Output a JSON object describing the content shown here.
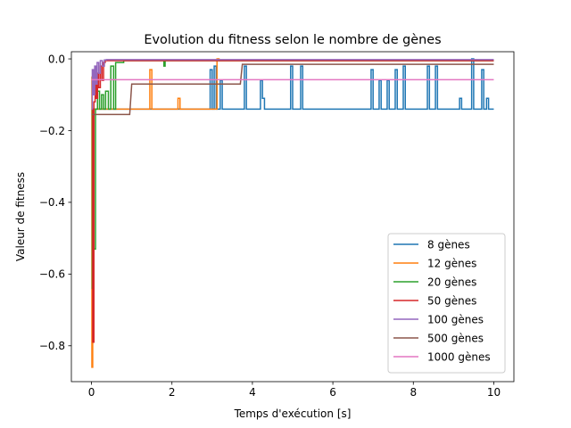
{
  "chart_data": {
    "type": "line",
    "title": "Evolution du fitness selon le nombre de gènes",
    "xlabel": "Temps d'exécution [s]",
    "ylabel": "Valeur de fitness",
    "xlim": [
      -0.5,
      10.5
    ],
    "ylim": [
      -0.9,
      0.02
    ],
    "xticks": [
      0,
      2,
      4,
      6,
      8,
      10
    ],
    "xtick_labels": [
      "0",
      "2",
      "4",
      "6",
      "8",
      "10"
    ],
    "yticks": [
      0.0,
      -0.2,
      -0.4,
      -0.6,
      -0.8
    ],
    "ytick_labels": [
      "0.0",
      "−0.2",
      "−0.4",
      "−0.6",
      "−0.8"
    ],
    "grid": false,
    "legend_position": "bottom-right",
    "series": [
      {
        "name": "8 gènes",
        "color": "#1f77b4",
        "x": [
          0,
          0.05,
          0.1,
          0.3,
          2.95,
          2.95,
          3.0,
          3.0,
          3.05,
          3.05,
          3.1,
          3.1,
          3.2,
          3.2,
          3.25,
          3.25,
          3.3,
          3.3,
          3.8,
          3.8,
          3.85,
          3.85,
          4.2,
          4.2,
          4.25,
          4.25,
          4.3,
          4.3,
          4.95,
          4.95,
          5.0,
          5.0,
          5.2,
          5.2,
          5.25,
          5.25,
          6.95,
          6.95,
          7.0,
          7.0,
          7.15,
          7.15,
          7.2,
          7.2,
          7.35,
          7.35,
          7.4,
          7.4,
          7.55,
          7.55,
          7.6,
          7.6,
          7.75,
          7.75,
          7.8,
          7.8,
          8.35,
          8.35,
          8.4,
          8.4,
          8.55,
          8.55,
          8.6,
          8.6,
          9.15,
          9.15,
          9.2,
          9.2,
          9.45,
          9.45,
          9.5,
          9.5,
          9.55,
          9.55,
          9.7,
          9.7,
          9.75,
          9.75,
          9.82,
          9.82,
          9.87,
          9.87,
          10.0
        ],
        "y": [
          -0.14,
          -0.14,
          -0.14,
          -0.14,
          -0.14,
          -0.03,
          -0.03,
          -0.14,
          -0.14,
          -0.02,
          -0.02,
          -0.14,
          -0.14,
          -0.06,
          -0.06,
          -0.14,
          -0.14,
          -0.14,
          -0.14,
          -0.02,
          -0.02,
          -0.14,
          -0.14,
          -0.06,
          -0.06,
          -0.11,
          -0.11,
          -0.14,
          -0.14,
          -0.02,
          -0.02,
          -0.14,
          -0.14,
          -0.02,
          -0.02,
          -0.14,
          -0.14,
          -0.03,
          -0.03,
          -0.14,
          -0.14,
          -0.06,
          -0.06,
          -0.14,
          -0.14,
          -0.06,
          -0.06,
          -0.14,
          -0.14,
          -0.03,
          -0.03,
          -0.14,
          -0.14,
          -0.02,
          -0.02,
          -0.14,
          -0.14,
          -0.02,
          -0.02,
          -0.14,
          -0.14,
          -0.02,
          -0.02,
          -0.14,
          -0.14,
          -0.11,
          -0.11,
          -0.14,
          -0.14,
          0.0,
          0.0,
          -0.14,
          -0.14,
          -0.14,
          -0.14,
          -0.03,
          -0.03,
          -0.14,
          -0.14,
          -0.11,
          -0.11,
          -0.14,
          -0.14
        ]
      },
      {
        "name": "12 gènes",
        "color": "#ff7f0e",
        "x": [
          0,
          0.01,
          0.01,
          0.03,
          0.03,
          0.06,
          0.06,
          0.1,
          0.1,
          1.45,
          1.45,
          1.5,
          1.5,
          2.15,
          2.15,
          2.2,
          2.2,
          3.12,
          3.12,
          3.17,
          3.17,
          10.0
        ],
        "y": [
          -0.05,
          -0.05,
          -0.86,
          -0.86,
          -0.14,
          -0.14,
          -0.14,
          -0.14,
          -0.14,
          -0.14,
          -0.03,
          -0.03,
          -0.14,
          -0.14,
          -0.11,
          -0.11,
          -0.14,
          -0.14,
          0.0,
          0.0,
          -0.005,
          -0.005
        ]
      },
      {
        "name": "20 gènes",
        "color": "#2ca02c",
        "x": [
          0,
          0.02,
          0.02,
          0.05,
          0.05,
          0.1,
          0.1,
          0.15,
          0.15,
          0.2,
          0.2,
          0.25,
          0.25,
          0.3,
          0.3,
          0.35,
          0.35,
          0.42,
          0.42,
          0.48,
          0.48,
          0.55,
          0.55,
          0.6,
          0.6,
          0.65,
          0.65,
          0.7,
          0.7,
          0.75,
          0.75,
          0.8,
          0.8,
          1.8,
          1.8,
          1.83,
          1.83,
          10.0
        ],
        "y": [
          -0.14,
          -0.14,
          -0.64,
          -0.64,
          -0.53,
          -0.53,
          -0.14,
          -0.14,
          -0.09,
          -0.09,
          -0.14,
          -0.14,
          -0.1,
          -0.1,
          -0.14,
          -0.14,
          -0.09,
          -0.09,
          -0.14,
          -0.14,
          -0.02,
          -0.02,
          -0.14,
          -0.14,
          -0.01,
          -0.01,
          -0.01,
          -0.01,
          -0.01,
          -0.01,
          -0.01,
          -0.01,
          -0.005,
          -0.005,
          -0.02,
          -0.02,
          -0.005,
          -0.005
        ]
      },
      {
        "name": "50 gènes",
        "color": "#d62728",
        "x": [
          0,
          0.03,
          0.03,
          0.06,
          0.06,
          0.09,
          0.09,
          0.12,
          0.12,
          0.15,
          0.15,
          0.18,
          0.18,
          0.22,
          0.22,
          0.26,
          0.26,
          0.3,
          0.3,
          0.34,
          0.34,
          10.0
        ],
        "y": [
          -0.14,
          -0.14,
          -0.79,
          -0.79,
          -0.12,
          -0.12,
          -0.06,
          -0.06,
          -0.11,
          -0.11,
          -0.04,
          -0.04,
          -0.08,
          -0.08,
          -0.02,
          -0.02,
          -0.06,
          -0.06,
          -0.01,
          -0.01,
          -0.005,
          -0.005
        ]
      },
      {
        "name": "100 gènes",
        "color": "#9467bd",
        "x": [
          0,
          0.02,
          0.02,
          0.05,
          0.05,
          0.08,
          0.08,
          0.11,
          0.11,
          0.14,
          0.14,
          0.18,
          0.18,
          0.22,
          0.22,
          0.27,
          0.27,
          0.32,
          0.32,
          0.37,
          0.37,
          10.0
        ],
        "y": [
          -0.14,
          -0.14,
          -0.03,
          -0.03,
          -0.1,
          -0.1,
          -0.02,
          -0.02,
          -0.07,
          -0.07,
          -0.01,
          -0.01,
          -0.04,
          -0.04,
          -0.005,
          -0.005,
          -0.02,
          -0.02,
          -0.003,
          -0.003,
          -0.002,
          -0.002
        ]
      },
      {
        "name": "500 gènes",
        "color": "#8c564b",
        "x": [
          0,
          0.95,
          0.95,
          1.0,
          1.0,
          3.7,
          3.7,
          3.75,
          3.75,
          10.0
        ],
        "y": [
          -0.155,
          -0.155,
          -0.155,
          -0.07,
          -0.07,
          -0.07,
          -0.07,
          -0.015,
          -0.015,
          -0.015
        ]
      },
      {
        "name": "1000 gènes",
        "color": "#e377c2",
        "x": [
          0,
          10.0
        ],
        "y": [
          -0.058,
          -0.058
        ]
      }
    ]
  }
}
